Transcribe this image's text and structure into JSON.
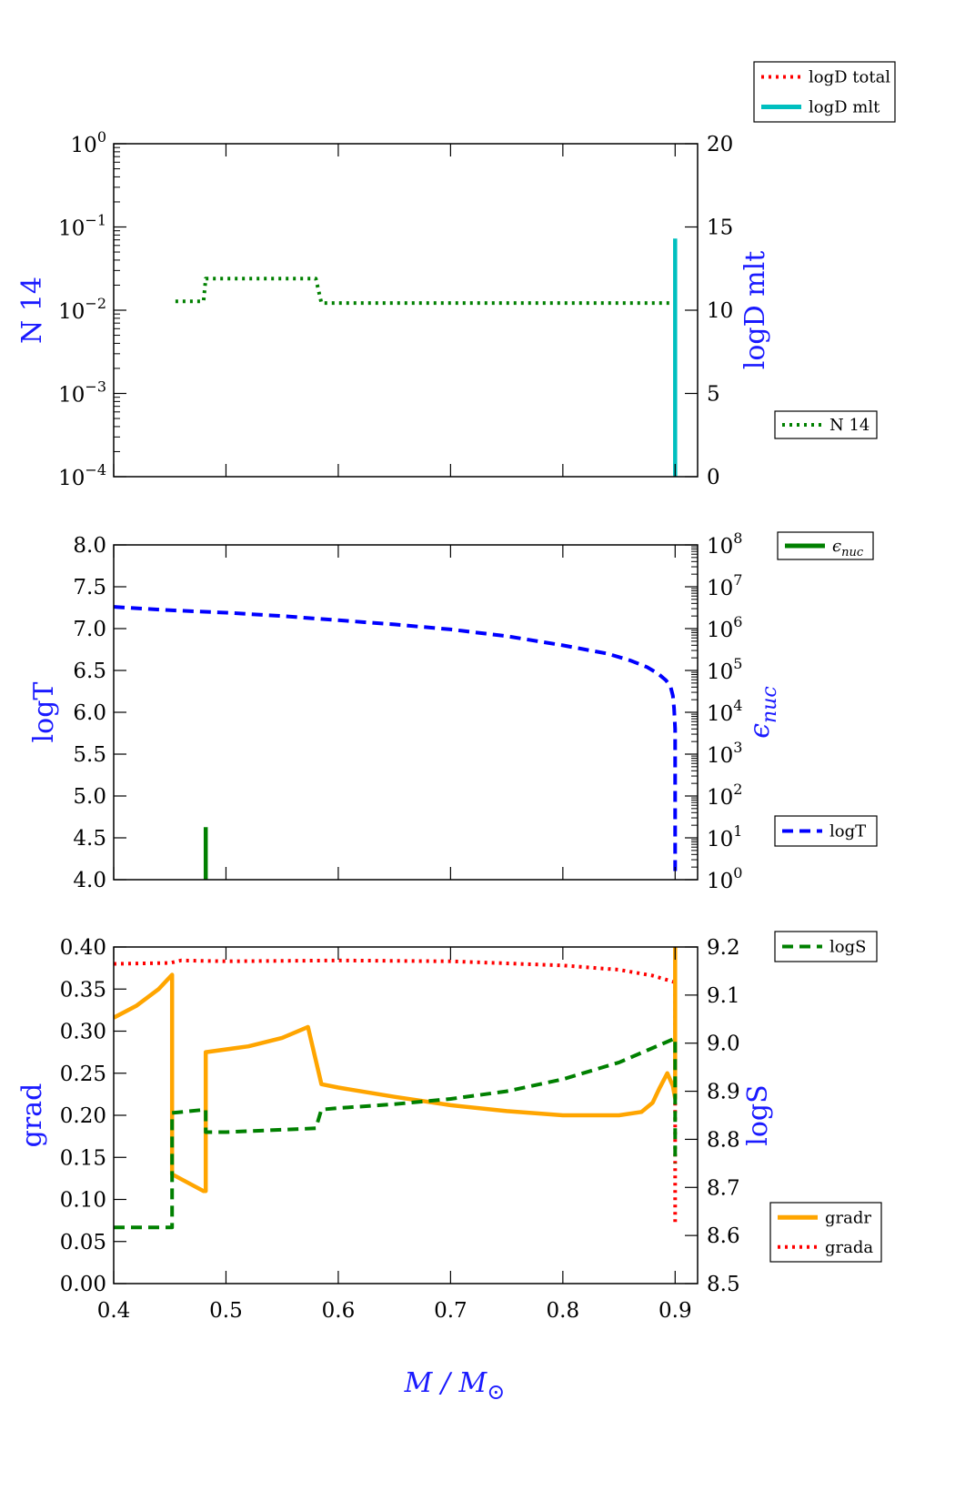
{
  "chart_data": [
    {
      "type": "line",
      "panel": "top",
      "x_range": [
        0.4,
        0.92
      ],
      "left_axis": {
        "label": "N 14",
        "scale": "log",
        "ylim": [
          0.0001,
          1
        ],
        "ticks": [
          {
            "value": 0.0001,
            "base": "10",
            "exp": "−4"
          },
          {
            "value": 0.001,
            "base": "10",
            "exp": "−3"
          },
          {
            "value": 0.01,
            "base": "10",
            "exp": "−2"
          },
          {
            "value": 0.1,
            "base": "10",
            "exp": "−1"
          },
          {
            "value": 1,
            "base": "10",
            "exp": "0"
          }
        ]
      },
      "right_axis": {
        "label": "logD mlt",
        "scale": "linear",
        "ylim": [
          0,
          20
        ],
        "ticks": [
          "0",
          "5",
          "10",
          "15",
          "20"
        ]
      },
      "legend_top": [
        {
          "name": "logD total",
          "color": "#ff0000",
          "style": "dotted"
        },
        {
          "name": "logD mlt",
          "color": "#00bfbf",
          "style": "solid"
        }
      ],
      "legend_bottom": [
        {
          "name": "N 14",
          "color": "#008000",
          "style": "dotted"
        }
      ],
      "series": [
        {
          "name": "N 14",
          "axis": "left",
          "color": "#008000",
          "style": "dotted",
          "x": [
            0.455,
            0.48,
            0.482,
            0.58,
            0.585,
            0.9
          ],
          "y": [
            0.0128,
            0.0128,
            0.024,
            0.024,
            0.0122,
            0.0122
          ]
        },
        {
          "name": "logD mlt",
          "axis": "right",
          "color": "#00bfbf",
          "style": "solid",
          "x": [
            0.9,
            0.9
          ],
          "y": [
            0,
            14.3
          ]
        }
      ]
    },
    {
      "type": "line",
      "panel": "middle",
      "x_range": [
        0.4,
        0.92
      ],
      "left_axis": {
        "label": "logT",
        "scale": "linear",
        "ylim": [
          4.0,
          8.0
        ],
        "ticks": [
          "4.0",
          "4.5",
          "5.0",
          "5.5",
          "6.0",
          "6.5",
          "7.0",
          "7.5",
          "8.0"
        ]
      },
      "right_axis": {
        "label": "ϵ",
        "label_sub": "nuc",
        "scale": "log",
        "ylim": [
          1,
          100000000
        ],
        "ticks": [
          {
            "value": 1,
            "base": "10",
            "exp": "0"
          },
          {
            "value": 10,
            "base": "10",
            "exp": "1"
          },
          {
            "value": 100,
            "base": "10",
            "exp": "2"
          },
          {
            "value": 1000,
            "base": "10",
            "exp": "3"
          },
          {
            "value": 10000,
            "base": "10",
            "exp": "4"
          },
          {
            "value": 100000,
            "base": "10",
            "exp": "5"
          },
          {
            "value": 1000000,
            "base": "10",
            "exp": "6"
          },
          {
            "value": 10000000,
            "base": "10",
            "exp": "7"
          },
          {
            "value": 100000000,
            "base": "10",
            "exp": "8"
          }
        ]
      },
      "legend_top": [
        {
          "name": "ϵ",
          "name_sub": "nuc",
          "color": "#008000",
          "style": "solid"
        }
      ],
      "legend_bottom": [
        {
          "name": "logT",
          "color": "#0000ff",
          "style": "dashed"
        }
      ],
      "series": [
        {
          "name": "logT",
          "axis": "left",
          "color": "#0000ff",
          "style": "dashed",
          "x": [
            0.4,
            0.45,
            0.5,
            0.55,
            0.6,
            0.65,
            0.7,
            0.75,
            0.8,
            0.84,
            0.86,
            0.875,
            0.885,
            0.892,
            0.896,
            0.898,
            0.899,
            0.9,
            0.9
          ],
          "y": [
            7.26,
            7.22,
            7.19,
            7.15,
            7.1,
            7.05,
            6.99,
            6.91,
            6.8,
            6.7,
            6.62,
            6.54,
            6.46,
            6.38,
            6.3,
            6.2,
            6.05,
            5.8,
            4.1
          ]
        },
        {
          "name": "ϵnuc",
          "axis": "right",
          "color": "#008000",
          "style": "solid",
          "x": [
            0.482,
            0.482
          ],
          "y": [
            1,
            18
          ]
        }
      ]
    },
    {
      "type": "line",
      "panel": "bottom",
      "x_range": [
        0.4,
        0.92
      ],
      "xlabel": "M / M",
      "xlabel_sub": "⊙",
      "x_ticks": [
        "0.4",
        "0.5",
        "0.6",
        "0.7",
        "0.8",
        "0.9"
      ],
      "left_axis": {
        "label": "grad",
        "scale": "linear",
        "ylim": [
          0.0,
          0.4
        ],
        "ticks": [
          "0.00",
          "0.05",
          "0.10",
          "0.15",
          "0.20",
          "0.25",
          "0.30",
          "0.35",
          "0.40"
        ]
      },
      "right_axis": {
        "label": "logS",
        "scale": "linear",
        "ylim": [
          8.5,
          9.2
        ],
        "ticks": [
          "8.5",
          "8.6",
          "8.7",
          "8.8",
          "8.9",
          "9.0",
          "9.1",
          "9.2"
        ]
      },
      "legend_top": [
        {
          "name": "logS",
          "color": "#008000",
          "style": "dashed"
        }
      ],
      "legend_bottom": [
        {
          "name": "gradr",
          "color": "#ffa500",
          "style": "solid"
        },
        {
          "name": "grada",
          "color": "#ff0000",
          "style": "dotted"
        }
      ],
      "series": [
        {
          "name": "grada",
          "axis": "left",
          "color": "#ff0000",
          "style": "dotted",
          "x": [
            0.4,
            0.45,
            0.46,
            0.5,
            0.6,
            0.7,
            0.8,
            0.85,
            0.88,
            0.9,
            0.9
          ],
          "y": [
            0.38,
            0.381,
            0.384,
            0.383,
            0.384,
            0.383,
            0.378,
            0.373,
            0.366,
            0.358,
            0.07
          ]
        },
        {
          "name": "gradr",
          "axis": "left",
          "color": "#ffa500",
          "style": "solid",
          "x": [
            0.4,
            0.42,
            0.44,
            0.452,
            0.452,
            0.48,
            0.482,
            0.482,
            0.52,
            0.55,
            0.573,
            0.585,
            0.6,
            0.65,
            0.7,
            0.75,
            0.8,
            0.85,
            0.87,
            0.88,
            0.886,
            0.893,
            0.898,
            0.9,
            0.9
          ],
          "y": [
            0.316,
            0.33,
            0.35,
            0.367,
            0.13,
            0.11,
            0.11,
            0.275,
            0.282,
            0.292,
            0.305,
            0.237,
            0.233,
            0.222,
            0.212,
            0.205,
            0.2,
            0.2,
            0.204,
            0.215,
            0.232,
            0.25,
            0.235,
            0.22,
            0.4
          ]
        },
        {
          "name": "logS",
          "axis": "right",
          "color": "#008000",
          "style": "dashed",
          "x": [
            0.4,
            0.452,
            0.452,
            0.482,
            0.482,
            0.5,
            0.58,
            0.585,
            0.6,
            0.65,
            0.7,
            0.75,
            0.8,
            0.85,
            0.88,
            0.9,
            0.9
          ],
          "y": [
            8.617,
            8.617,
            8.855,
            8.862,
            8.815,
            8.815,
            8.823,
            8.862,
            8.865,
            8.873,
            8.884,
            8.9,
            8.925,
            8.96,
            8.99,
            9.01,
            8.75
          ]
        }
      ]
    }
  ]
}
